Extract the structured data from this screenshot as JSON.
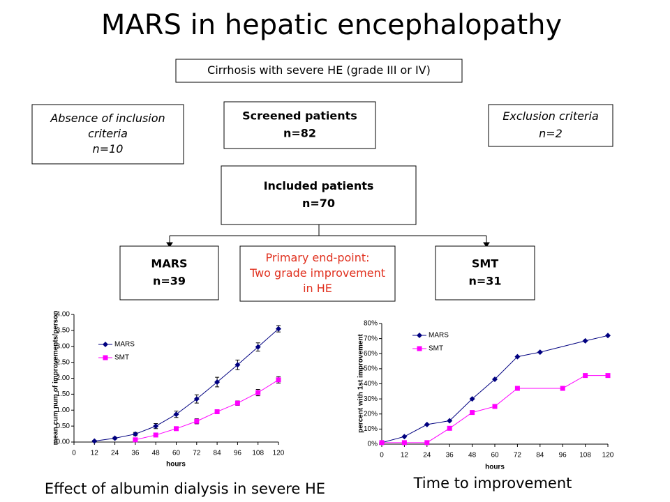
{
  "title": "MARS in hepatic encephalopathy",
  "nodes": [
    {
      "lines": [
        "Cirrhosis with severe HE (grade III or IV)"
      ],
      "style": "normal"
    },
    {
      "lines": [
        "Absence of inclusion",
        "criteria",
        "n=10"
      ],
      "style": "italic"
    },
    {
      "lines": [
        "Screened patients",
        "n=82"
      ],
      "style": "bold"
    },
    {
      "lines": [
        "Exclusion criteria",
        "n=2"
      ],
      "style": "italic"
    },
    {
      "lines": [
        "Included patients",
        "n=70"
      ],
      "style": "bold"
    },
    {
      "lines": [
        "MARS",
        "n=39"
      ],
      "style": "bold"
    },
    {
      "lines": [
        "Primary end-point:",
        "Two grade improvement",
        "in HE"
      ],
      "style": "red"
    },
    {
      "lines": [
        "SMT",
        "n=31"
      ],
      "style": "bold"
    }
  ],
  "chart_data": [
    {
      "type": "line",
      "caption": "Effect of albumin dialysis in severe HE",
      "y_label": "mean cum num of improvements/person",
      "x_label": "hours",
      "xlim": [
        0,
        120
      ],
      "xticks": [
        0,
        12,
        24,
        36,
        48,
        60,
        72,
        84,
        96,
        108,
        120
      ],
      "ylim": [
        0,
        4
      ],
      "yticks": [
        {
          "value": 0,
          "label": "0.00"
        },
        {
          "value": 0.5,
          "label": "0.50"
        },
        {
          "value": 1,
          "label": "1.00"
        },
        {
          "value": 1.5,
          "label": "1.50"
        },
        {
          "value": 2,
          "label": "2.00"
        },
        {
          "value": 2.5,
          "label": "2.50"
        },
        {
          "value": 3,
          "label": "3.00"
        },
        {
          "value": 3.5,
          "label": "3.50"
        },
        {
          "value": 4,
          "label": "4.00"
        }
      ],
      "series": [
        {
          "name": "MARS",
          "color": "#000080",
          "marker": "diamond",
          "x": [
            12,
            24,
            36,
            48,
            60,
            72,
            84,
            96,
            108,
            120
          ],
          "values": [
            0.03,
            0.12,
            0.25,
            0.5,
            0.87,
            1.35,
            1.88,
            2.42,
            2.98,
            3.55
          ],
          "errors": [
            0.02,
            0.03,
            0.05,
            0.08,
            0.1,
            0.13,
            0.15,
            0.15,
            0.13,
            0.1
          ]
        },
        {
          "name": "SMT",
          "color": "#ff00ff",
          "marker": "square",
          "x": [
            36,
            48,
            60,
            72,
            84,
            96,
            108,
            120
          ],
          "values": [
            0.07,
            0.22,
            0.42,
            0.65,
            0.95,
            1.22,
            1.55,
            1.95
          ],
          "errors": [
            0.03,
            0.04,
            0.05,
            0.08,
            0.06,
            0.07,
            0.1,
            0.1
          ]
        }
      ]
    },
    {
      "type": "line",
      "caption": "Time to improvement",
      "y_label": "percent with 1st improvement",
      "x_label": "hours",
      "xlim": [
        0,
        120
      ],
      "xticks": [
        0,
        12,
        24,
        36,
        48,
        60,
        72,
        84,
        96,
        108,
        120
      ],
      "ylim": [
        0,
        80
      ],
      "yticks": [
        {
          "value": 0,
          "label": "0%"
        },
        {
          "value": 10,
          "label": "10%"
        },
        {
          "value": 20,
          "label": "20%"
        },
        {
          "value": 30,
          "label": "30%"
        },
        {
          "value": 40,
          "label": "40%"
        },
        {
          "value": 50,
          "label": "50%"
        },
        {
          "value": 60,
          "label": "60%"
        },
        {
          "value": 70,
          "label": "70%"
        },
        {
          "value": 80,
          "label": "80%"
        }
      ],
      "series": [
        {
          "name": "MARS",
          "color": "#000080",
          "marker": "diamond",
          "x": [
            0,
            12,
            24,
            36,
            48,
            60,
            72,
            84,
            108,
            120
          ],
          "values": [
            1,
            5,
            13,
            15.5,
            30,
            43,
            58,
            61,
            68.5,
            72
          ]
        },
        {
          "name": "SMT",
          "color": "#ff00ff",
          "marker": "square",
          "x": [
            0,
            12,
            24,
            36,
            48,
            60,
            72,
            96,
            108,
            120
          ],
          "values": [
            1,
            1,
            1,
            10.5,
            21,
            25,
            37,
            37,
            45.5,
            45.5
          ]
        }
      ]
    }
  ]
}
